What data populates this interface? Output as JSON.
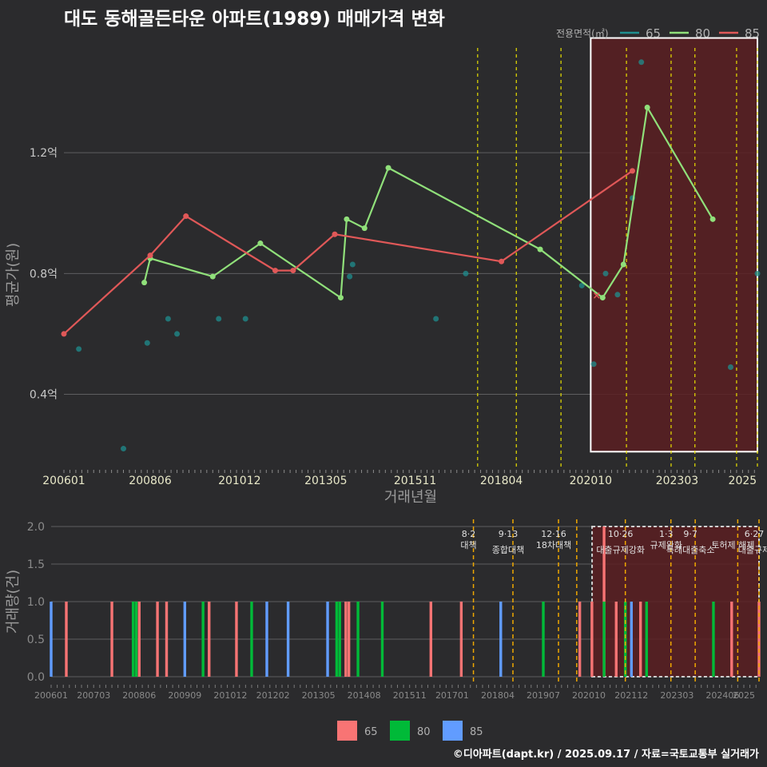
{
  "title": "대도 동해골든타운 아파트(1989) 매매가격 변화",
  "footer": "©디아파트(dapt.kr) / 2025.09.17 / 자료=국토교통부 실거래가",
  "colors": {
    "bg": "#2b2b2d",
    "grid": "#5e5e60",
    "text": "#c8c8c8",
    "policy": "#e8e000",
    "policy_bar": "#f0a800",
    "s65_line": "#1f8f8f",
    "s80_line": "#90e07a",
    "s85_line": "#e05858",
    "bar65": "#f87474",
    "bar80": "#00ba38",
    "bar85": "#619cff",
    "highlight_fill": "#5a1e22"
  },
  "chart_data": [
    {
      "type": "line",
      "title": "대도 동해골든타운 아파트(1989) 매매가격 변화",
      "xlabel": "거래년월",
      "ylabel": "평균가(원)",
      "legend_title": "전용면적(㎡)",
      "legend_position": "top-right",
      "x_range": [
        "2006-01",
        "2025-06"
      ],
      "ylim": [
        0.15,
        1.6
      ],
      "y_ticks": [
        0.4,
        0.8,
        1.2
      ],
      "y_tick_labels": [
        "0.4억",
        "0.8억",
        "1.2억"
      ],
      "x_tick_labels": [
        "200601",
        "200806",
        "201012",
        "201305",
        "201511",
        "201804",
        "202010",
        "202303",
        "2025"
      ],
      "series": [
        {
          "name": "65",
          "style": "points",
          "points": [
            [
              "2006-06",
              0.55
            ],
            [
              "2007-09",
              0.22
            ],
            [
              "2008-05",
              0.57
            ],
            [
              "2008-12",
              0.65
            ],
            [
              "2009-03",
              0.6
            ],
            [
              "2010-05",
              0.65
            ],
            [
              "2011-02",
              0.65
            ],
            [
              "2014-01",
              0.79
            ],
            [
              "2014-02",
              0.83
            ],
            [
              "2016-06",
              0.65
            ],
            [
              "2017-04",
              0.8
            ],
            [
              "2020-07",
              0.76
            ],
            [
              "2020-11",
              0.5
            ],
            [
              "2021-03",
              0.8
            ],
            [
              "2021-07",
              0.73
            ],
            [
              "2021-12",
              1.05
            ],
            [
              "2022-03",
              1.5
            ],
            [
              "2024-09",
              0.49
            ],
            [
              "2025-06",
              0.8
            ]
          ]
        },
        {
          "name": "80",
          "style": "line",
          "points": [
            [
              "2008-04",
              0.77
            ],
            [
              "2008-06",
              0.85
            ],
            [
              "2010-03",
              0.79
            ],
            [
              "2011-07",
              0.9
            ],
            [
              "2013-10",
              0.72
            ],
            [
              "2013-12",
              0.98
            ],
            [
              "2014-06",
              0.95
            ],
            [
              "2015-02",
              1.15
            ],
            [
              "2019-05",
              0.88
            ],
            [
              "2021-02",
              0.72
            ],
            [
              "2021-09",
              0.83
            ],
            [
              "2022-05",
              1.35
            ],
            [
              "2024-03",
              0.98
            ]
          ]
        },
        {
          "name": "85",
          "style": "line",
          "points": [
            [
              "2006-01",
              0.6
            ],
            [
              "2008-06",
              0.86
            ],
            [
              "2009-06",
              0.99
            ],
            [
              "2011-12",
              0.81
            ],
            [
              "2012-06",
              0.81
            ],
            [
              "2013-08",
              0.93
            ],
            [
              "2018-04",
              0.84
            ],
            [
              "2021-12",
              1.14
            ]
          ]
        }
      ],
      "marker": {
        "label": "×",
        "x": "2020-12",
        "y": 0.73
      },
      "policy_lines": [
        "2017-08",
        "2018-09",
        "2019-12",
        "2021-10",
        "2023-01",
        "2023-09",
        "2024-11",
        "2025-06"
      ],
      "highlight_range": [
        "2020-10",
        "2025-06"
      ]
    },
    {
      "type": "bar",
      "ylabel": "거래량(건)",
      "ylim": [
        0,
        2.0
      ],
      "y_tick_labels": [
        "0.0",
        "0.5",
        "1.0",
        "1.5",
        "2.0"
      ],
      "x_tick_labels": [
        "200601",
        "200703",
        "200806",
        "200909",
        "201012",
        "201202",
        "201305",
        "201408",
        "201511",
        "201701",
        "201804",
        "201907",
        "202010",
        "202112",
        "202303",
        "202406",
        "2025"
      ],
      "legend": [
        "65",
        "80",
        "85"
      ],
      "legend_position": "bottom",
      "bars": [
        {
          "x": "2006-01",
          "area": "85",
          "v": 1
        },
        {
          "x": "2006-06",
          "area": "65",
          "v": 1
        },
        {
          "x": "2007-09",
          "area": "65",
          "v": 1
        },
        {
          "x": "2008-04",
          "area": "80",
          "v": 1
        },
        {
          "x": "2008-05",
          "area": "80",
          "v": 1
        },
        {
          "x": "2008-06",
          "area": "65",
          "v": 1
        },
        {
          "x": "2008-12",
          "area": "65",
          "v": 1
        },
        {
          "x": "2009-03",
          "area": "65",
          "v": 1
        },
        {
          "x": "2009-09",
          "area": "85",
          "v": 1
        },
        {
          "x": "2010-03",
          "area": "80",
          "v": 1
        },
        {
          "x": "2010-05",
          "area": "65",
          "v": 1
        },
        {
          "x": "2011-02",
          "area": "65",
          "v": 1
        },
        {
          "x": "2011-07",
          "area": "80",
          "v": 1
        },
        {
          "x": "2011-12",
          "area": "85",
          "v": 1
        },
        {
          "x": "2012-07",
          "area": "85",
          "v": 1
        },
        {
          "x": "2013-08",
          "area": "85",
          "v": 1
        },
        {
          "x": "2013-11",
          "area": "80",
          "v": 1
        },
        {
          "x": "2013-12",
          "area": "80",
          "v": 1
        },
        {
          "x": "2014-02",
          "area": "65",
          "v": 1
        },
        {
          "x": "2014-03",
          "area": "65",
          "v": 1
        },
        {
          "x": "2014-06",
          "area": "80",
          "v": 1
        },
        {
          "x": "2015-02",
          "area": "80",
          "v": 1
        },
        {
          "x": "2016-06",
          "area": "65",
          "v": 1
        },
        {
          "x": "2017-04",
          "area": "65",
          "v": 1
        },
        {
          "x": "2018-05",
          "area": "85",
          "v": 1
        },
        {
          "x": "2019-07",
          "area": "80",
          "v": 1
        },
        {
          "x": "2020-07",
          "area": "65",
          "v": 1
        },
        {
          "x": "2020-11",
          "area": "65",
          "v": 1
        },
        {
          "x": "2021-03",
          "area": "65",
          "v": 2
        },
        {
          "x": "2021-03",
          "area": "80",
          "v": 1
        },
        {
          "x": "2021-07",
          "area": "65",
          "v": 1
        },
        {
          "x": "2021-10",
          "area": "80",
          "v": 1
        },
        {
          "x": "2021-12",
          "area": "85",
          "v": 1
        },
        {
          "x": "2022-03",
          "area": "65",
          "v": 1
        },
        {
          "x": "2022-05",
          "area": "80",
          "v": 1
        },
        {
          "x": "2024-03",
          "area": "80",
          "v": 1
        },
        {
          "x": "2024-09",
          "area": "65",
          "v": 1
        },
        {
          "x": "2025-06",
          "area": "65",
          "v": 1
        }
      ],
      "annotations": [
        {
          "x": "2017-08",
          "date": "8·2",
          "label": "대책"
        },
        {
          "x": "2018-09",
          "date": "9·13",
          "label": "종합대책"
        },
        {
          "x": "2019-12",
          "date": "12·16",
          "label": "18차대책"
        },
        {
          "x": "2021-10",
          "date": "10·26",
          "label": "대출규제강화"
        },
        {
          "x": "2023-01",
          "date": "1·3",
          "label": "규제완화"
        },
        {
          "x": "2023-09",
          "date": "9·7",
          "label": "특례대출축소"
        },
        {
          "x": "2024-11",
          "date": "",
          "label": "토허제 해제"
        },
        {
          "x": "2025-06",
          "date": "6·27",
          "label": "대출규제"
        }
      ],
      "policy_lines": [
        "2017-08",
        "2018-09",
        "2019-12",
        "2020-06",
        "2021-10",
        "2023-01",
        "2023-09",
        "2024-11",
        "2025-06"
      ],
      "highlight_range": [
        "2020-10",
        "2025-06"
      ]
    }
  ]
}
